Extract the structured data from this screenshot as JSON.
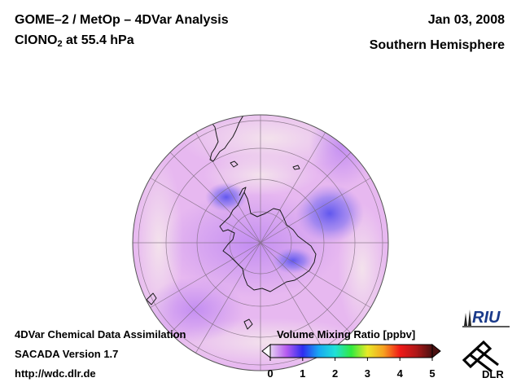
{
  "header": {
    "title_line1": "GOME–2 / MetOp – 4DVar Analysis",
    "species_prefix": "ClONO",
    "species_subscript": "2",
    "species_suffix": " at 55.4 hPa",
    "date": "Jan 03, 2008",
    "region": "Southern Hemisphere"
  },
  "footer": {
    "line1": "4DVar Chemical Data Assimilation",
    "line2": "SACADA Version 1.7",
    "line3": "http://wdc.dlr.de"
  },
  "colorbar": {
    "title": "Volume Mixing Ratio [ppbv]",
    "ticks": [
      "0",
      "1",
      "2",
      "3",
      "4",
      "5"
    ],
    "min": 0,
    "max": 5,
    "colors": [
      "#e6d3f2",
      "#b65cf0",
      "#2e2cf0",
      "#18a8f2",
      "#20e0d8",
      "#30ea40",
      "#e8ea28",
      "#f6a020",
      "#f01a18",
      "#b01818",
      "#4a1010"
    ]
  },
  "logos": {
    "riu": "RIU",
    "dlr": "DLR"
  },
  "colors": {
    "background_field": "#e7b8f0",
    "low_field": "#c58ef0",
    "high_field": "#f2dde8",
    "max_field": "#6f62f2",
    "coastline": "#1a1a1a",
    "graticule": "#7a6a7a"
  }
}
